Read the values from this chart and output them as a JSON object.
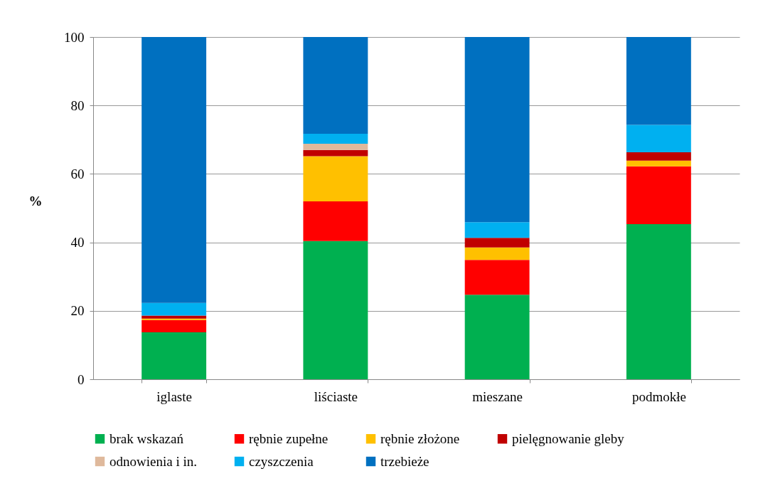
{
  "chart_data": {
    "type": "bar",
    "stacked": true,
    "ylabel": "%",
    "categories": [
      "iglaste",
      "liściaste",
      "mieszane",
      "podmokłe"
    ],
    "series": [
      {
        "name": "brak wskazań",
        "color": "#00b050",
        "values": [
          13.7,
          40.4,
          24.7,
          45.3
        ]
      },
      {
        "name": "rębnie zupełne",
        "color": "#ff0000",
        "values": [
          3.6,
          11.6,
          10.2,
          16.9
        ]
      },
      {
        "name": "rębnie złożone",
        "color": "#ffc000",
        "values": [
          0.4,
          13.2,
          3.6,
          1.7
        ]
      },
      {
        "name": "pielęgnowanie gleby",
        "color": "#c00000",
        "values": [
          0.9,
          1.8,
          2.8,
          2.4
        ]
      },
      {
        "name": "odnowienia i in.",
        "color": "#dfb99c",
        "values": [
          0,
          1.8,
          0,
          0
        ]
      },
      {
        "name": "czyszczenia",
        "color": "#00b0f0",
        "values": [
          3.7,
          2.9,
          4.6,
          8.0
        ]
      },
      {
        "name": "trzebieże",
        "color": "#0070c0",
        "values": [
          77.7,
          28.3,
          54.1,
          25.7
        ]
      }
    ],
    "ylim": [
      0,
      100
    ],
    "yticks": [
      0,
      20,
      40,
      60,
      80,
      100
    ],
    "grid": "y",
    "legend": "bottom"
  }
}
